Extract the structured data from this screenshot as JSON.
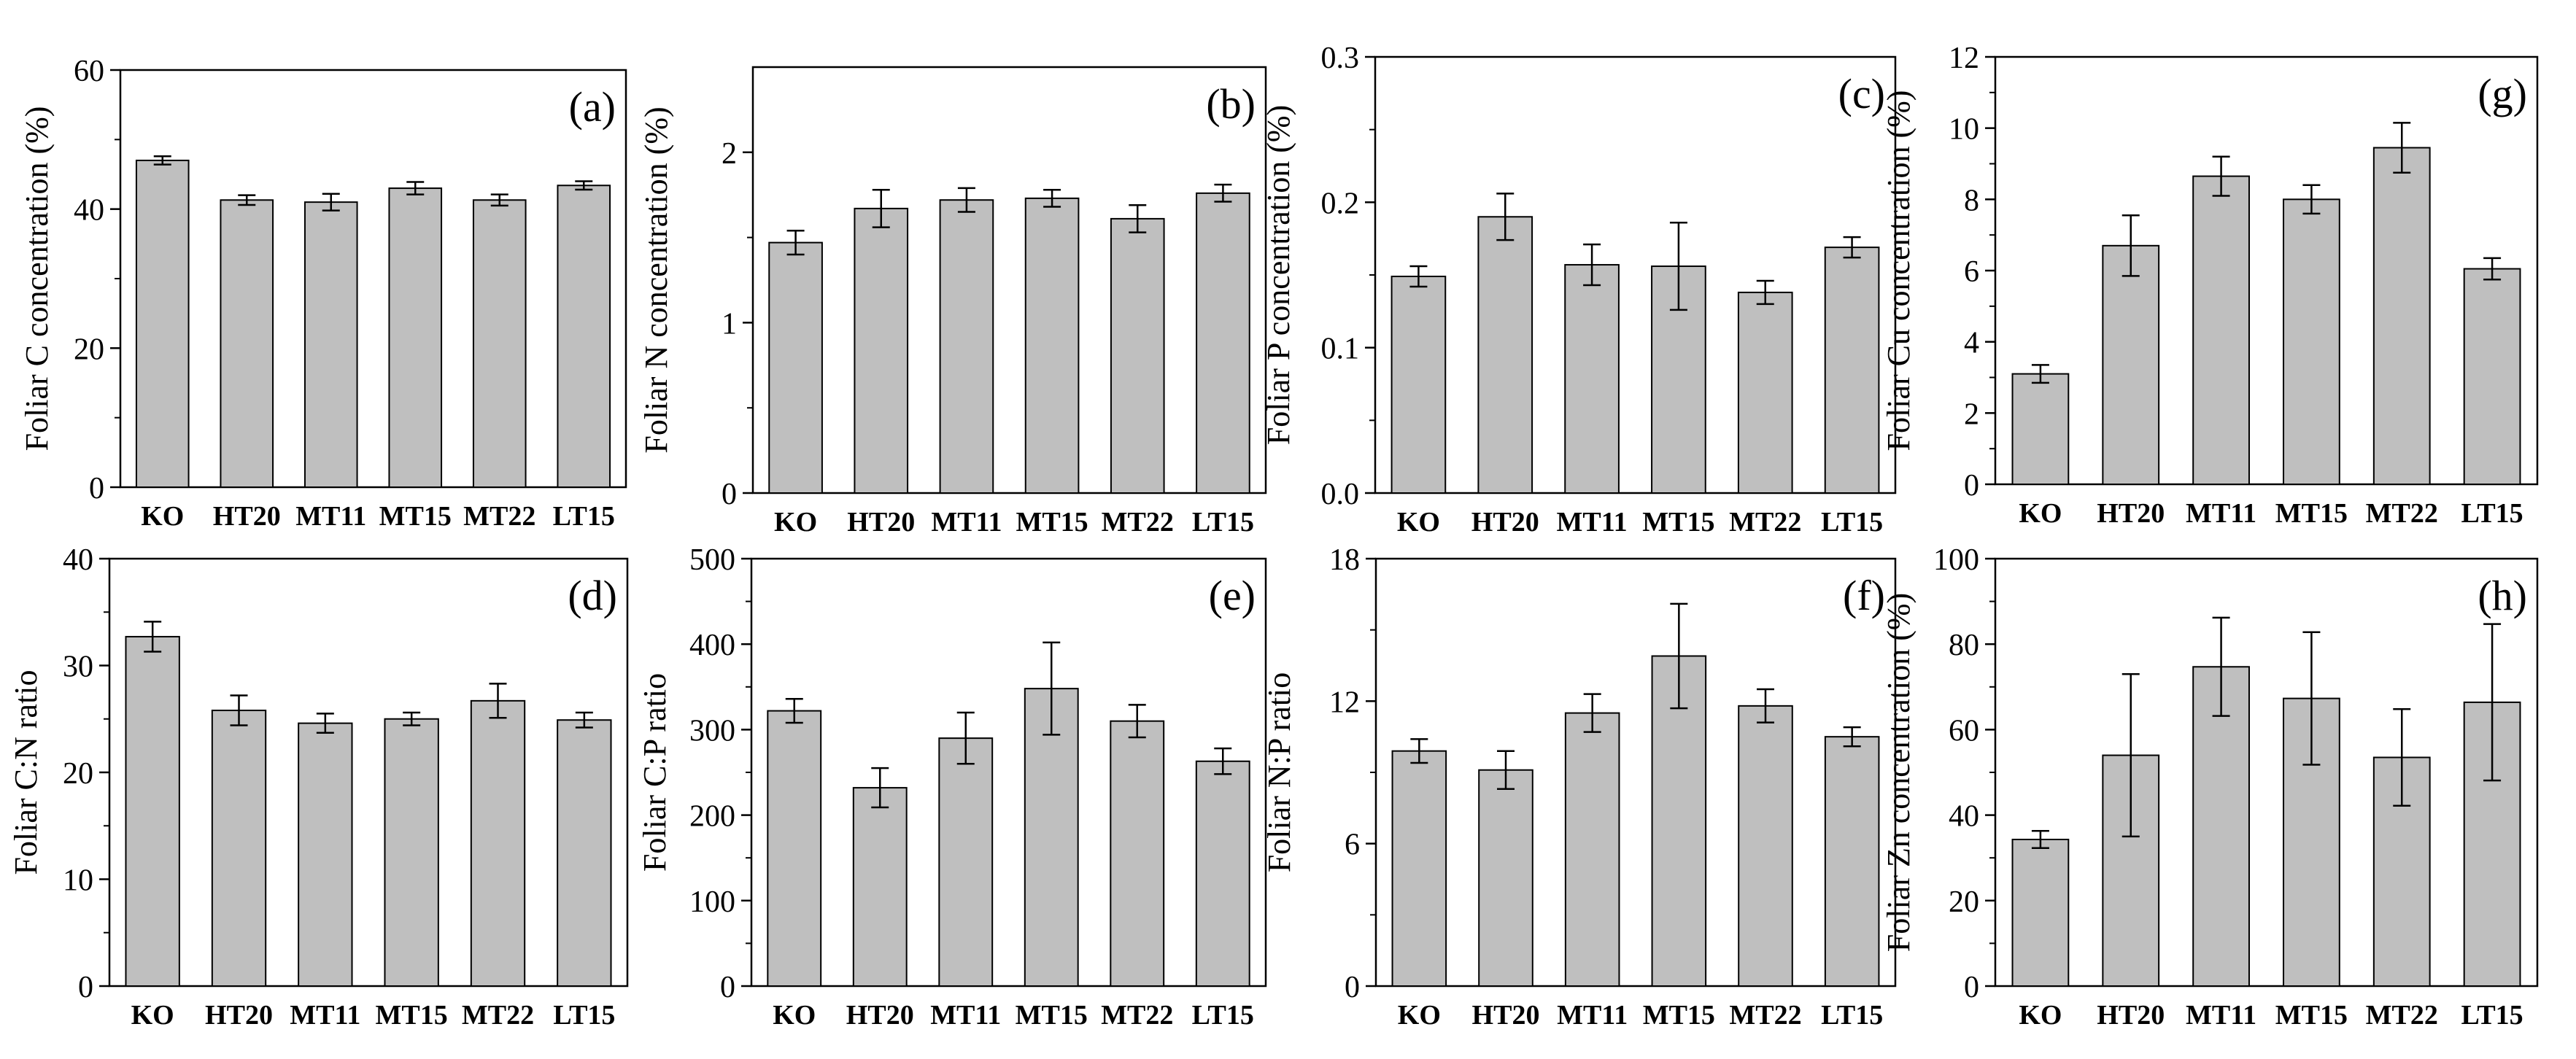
{
  "colors": {
    "bar": "#bfbfbf",
    "stroke": "#000000",
    "background": "#ffffff"
  },
  "chart_data": [
    {
      "id": "a",
      "type": "bar",
      "panel_label": "(a)",
      "ylabel": "Foliar C concentration (%)",
      "categories": [
        "KO",
        "HT20",
        "MT11",
        "MT15",
        "MT22",
        "LT15"
      ],
      "values": [
        47.0,
        41.3,
        41.0,
        43.0,
        41.3,
        43.4
      ],
      "errors": [
        0.6,
        0.7,
        1.2,
        0.9,
        0.8,
        0.6
      ],
      "ylim": [
        0,
        60
      ],
      "ticks": [
        0,
        20,
        40,
        60
      ],
      "tick_labels": [
        "0",
        "20",
        "40",
        "60"
      ],
      "minor_ticks": true
    },
    {
      "id": "b",
      "type": "bar",
      "panel_label": "(b)",
      "ylabel": "Foliar N concentration (%)",
      "categories": [
        "KO",
        "HT20",
        "MT11",
        "MT15",
        "MT22",
        "LT15"
      ],
      "values": [
        1.47,
        1.67,
        1.72,
        1.73,
        1.61,
        1.76
      ],
      "errors": [
        0.07,
        0.11,
        0.07,
        0.05,
        0.08,
        0.05
      ],
      "ylim": [
        0,
        2.5
      ],
      "ticks": [
        0,
        1,
        2
      ],
      "tick_labels": [
        "0",
        "1",
        "2"
      ],
      "minor_ticks": true
    },
    {
      "id": "c",
      "type": "bar",
      "panel_label": "(c)",
      "ylabel": "Foliar P concentration (%)",
      "categories": [
        "KO",
        "HT20",
        "MT11",
        "MT15",
        "MT22",
        "LT15"
      ],
      "values": [
        0.149,
        0.19,
        0.157,
        0.156,
        0.138,
        0.169
      ],
      "errors": [
        0.007,
        0.016,
        0.014,
        0.03,
        0.008,
        0.007
      ],
      "ylim": [
        0,
        0.3
      ],
      "ticks": [
        0,
        0.1,
        0.2,
        0.3
      ],
      "tick_labels": [
        "0.0",
        "0.1",
        "0.2",
        "0.3"
      ],
      "minor_ticks": true
    },
    {
      "id": "g",
      "type": "bar",
      "panel_label": "(g)",
      "ylabel": "Foliar Cu concentration (%)",
      "categories": [
        "KO",
        "HT20",
        "MT11",
        "MT15",
        "MT22",
        "LT15"
      ],
      "values": [
        3.1,
        6.7,
        8.65,
        8.0,
        9.45,
        6.05
      ],
      "errors": [
        0.25,
        0.85,
        0.55,
        0.4,
        0.7,
        0.3
      ],
      "ylim": [
        0,
        12
      ],
      "ticks": [
        0,
        2,
        4,
        6,
        8,
        10,
        12
      ],
      "tick_labels": [
        "0",
        "2",
        "4",
        "6",
        "8",
        "10",
        "12"
      ],
      "minor_ticks": true
    },
    {
      "id": "d",
      "type": "bar",
      "panel_label": "(d)",
      "ylabel": "Foliar C:N ratio",
      "categories": [
        "KO",
        "HT20",
        "MT11",
        "MT15",
        "MT22",
        "LT15"
      ],
      "values": [
        32.7,
        25.8,
        24.6,
        25.0,
        26.7,
        24.9
      ],
      "errors": [
        1.4,
        1.4,
        0.9,
        0.6,
        1.6,
        0.7
      ],
      "ylim": [
        0,
        40
      ],
      "ticks": [
        0,
        10,
        20,
        30,
        40
      ],
      "tick_labels": [
        "0",
        "10",
        "20",
        "30",
        "40"
      ],
      "minor_ticks": true
    },
    {
      "id": "e",
      "type": "bar",
      "panel_label": "(e)",
      "ylabel": "Foliar C:P ratio",
      "categories": [
        "KO",
        "HT20",
        "MT11",
        "MT15",
        "MT22",
        "LT15"
      ],
      "values": [
        322,
        232,
        290,
        348,
        310,
        263
      ],
      "errors": [
        14,
        23,
        30,
        54,
        19,
        15
      ],
      "ylim": [
        0,
        500
      ],
      "ticks": [
        0,
        100,
        200,
        300,
        400,
        500
      ],
      "tick_labels": [
        "0",
        "100",
        "200",
        "300",
        "400",
        "500"
      ],
      "minor_ticks": true
    },
    {
      "id": "f",
      "type": "bar",
      "panel_label": "(f)",
      "ylabel": "Foliar N:P ratio",
      "categories": [
        "KO",
        "HT20",
        "MT11",
        "MT15",
        "MT22",
        "LT15"
      ],
      "values": [
        9.9,
        9.1,
        11.5,
        13.9,
        11.8,
        10.5
      ],
      "errors": [
        0.5,
        0.8,
        0.8,
        2.2,
        0.7,
        0.4
      ],
      "ylim": [
        0,
        18
      ],
      "ticks": [
        0,
        6,
        12,
        18
      ],
      "tick_labels": [
        "0",
        "6",
        "12",
        "18"
      ],
      "minor_ticks": true
    },
    {
      "id": "h",
      "type": "bar",
      "panel_label": "(h)",
      "ylabel": "Foliar Zn concentration (%)",
      "categories": [
        "KO",
        "HT20",
        "MT11",
        "MT15",
        "MT22",
        "LT15"
      ],
      "values": [
        34.3,
        54.0,
        74.7,
        67.3,
        53.5,
        66.4
      ],
      "errors": [
        2.0,
        19.0,
        11.5,
        15.5,
        11.3,
        18.3
      ],
      "ylim": [
        0,
        100
      ],
      "ticks": [
        0,
        20,
        40,
        60,
        80,
        100
      ],
      "tick_labels": [
        "0",
        "20",
        "40",
        "60",
        "80",
        "100"
      ],
      "minor_ticks": true
    }
  ]
}
